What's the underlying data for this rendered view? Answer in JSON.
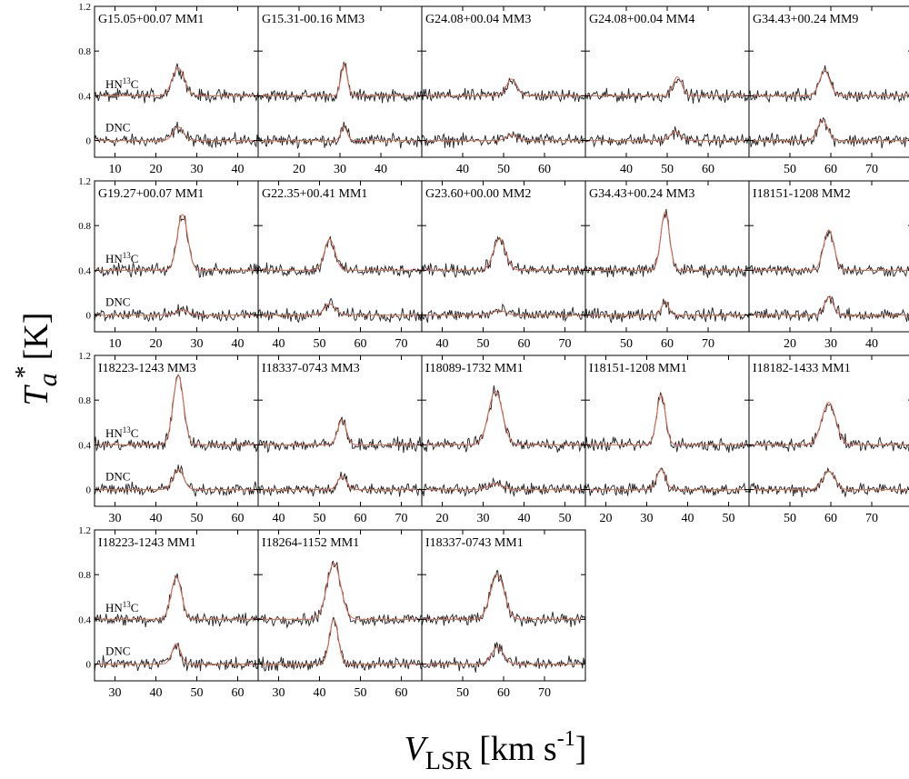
{
  "figure": {
    "ylabel": "T",
    "ylabel_sub": "a",
    "ylabel_sup": "*",
    "ylabel_unit": "[K]",
    "xlabel": "V",
    "xlabel_sub": "LSR",
    "xlabel_unit_pre": "[km s",
    "xlabel_unit_sup": "-1",
    "xlabel_unit_post": "]",
    "line_upper": "HN",
    "line_upper_sup": "13",
    "line_upper_post": "C",
    "line_lower": "DNC",
    "y_ticks": [
      "0",
      "0.4",
      "0.8",
      "1.2"
    ],
    "colors": {
      "spectrum": "#222222",
      "fit": "#e2684f",
      "axis": "#000000"
    }
  },
  "chart_data": {
    "type": "line",
    "ylim": [
      -0.15,
      1.2
    ],
    "grid": false,
    "baseline_offsets": {
      "HN13C": 0.4,
      "DNC": 0.0
    },
    "panels": [
      {
        "title": "G15.05+00.07 MM1",
        "xlim": [
          5,
          45
        ],
        "xticks": [
          10,
          20,
          30,
          40
        ],
        "hn13c": {
          "center": 25.5,
          "peak": 0.25,
          "fwhm": 3.5
        },
        "dnc": {
          "center": 25.5,
          "peak": 0.12,
          "fwhm": 3.0
        }
      },
      {
        "title": "G15.31-00.16 MM3",
        "xlim": [
          10,
          50
        ],
        "xticks": [
          20,
          30,
          40
        ],
        "hn13c": {
          "center": 31.0,
          "peak": 0.28,
          "fwhm": 1.8
        },
        "dnc": {
          "center": 31.0,
          "peak": 0.12,
          "fwhm": 1.8
        }
      },
      {
        "title": "G24.08+00.04 MM3",
        "xlim": [
          30,
          70
        ],
        "xticks": [
          40,
          50,
          60
        ],
        "hn13c": {
          "center": 52.0,
          "peak": 0.15,
          "fwhm": 3.0
        },
        "dnc": {
          "center": 52.0,
          "peak": 0.05,
          "fwhm": 3.0
        }
      },
      {
        "title": "G24.08+00.04 MM4",
        "xlim": [
          30,
          70
        ],
        "xticks": [
          40,
          50,
          60
        ],
        "hn13c": {
          "center": 52.5,
          "peak": 0.17,
          "fwhm": 2.5
        },
        "dnc": {
          "center": 52.0,
          "peak": 0.08,
          "fwhm": 3.0
        }
      },
      {
        "title": "G34.43+00.24 MM9",
        "xlim": [
          40,
          80
        ],
        "xticks": [
          50,
          60,
          70
        ],
        "hn13c": {
          "center": 58.5,
          "peak": 0.22,
          "fwhm": 3.0
        },
        "dnc": {
          "center": 58.0,
          "peak": 0.18,
          "fwhm": 3.0
        }
      },
      {
        "title": "G19.27+00.07 MM1",
        "xlim": [
          5,
          45
        ],
        "xticks": [
          10,
          20,
          30,
          40
        ],
        "hn13c": {
          "center": 26.5,
          "peak": 0.5,
          "fwhm": 3.0
        },
        "dnc": {
          "center": 26.5,
          "peak": 0.05,
          "fwhm": 3.0
        }
      },
      {
        "title": "G22.35+00.41 MM1",
        "xlim": [
          35,
          75
        ],
        "xticks": [
          40,
          50,
          60,
          70
        ],
        "hn13c": {
          "center": 52.5,
          "peak": 0.28,
          "fwhm": 3.0
        },
        "dnc": {
          "center": 52.5,
          "peak": 0.1,
          "fwhm": 3.0
        }
      },
      {
        "title": "G23.60+00.00 MM2",
        "xlim": [
          35,
          75
        ],
        "xticks": [
          40,
          50,
          60,
          70
        ],
        "hn13c": {
          "center": 54.0,
          "peak": 0.28,
          "fwhm": 3.5
        },
        "dnc": {
          "center": 54.0,
          "peak": 0.04,
          "fwhm": 3.5
        }
      },
      {
        "title": "G34.43+00.24 MM3",
        "xlim": [
          40,
          80
        ],
        "xticks": [
          50,
          60,
          70
        ],
        "hn13c": {
          "center": 59.5,
          "peak": 0.52,
          "fwhm": 2.5
        },
        "dnc": {
          "center": 59.5,
          "peak": 0.12,
          "fwhm": 2.0
        }
      },
      {
        "title": "I18151-1208 MM2",
        "xlim": [
          10,
          50
        ],
        "xticks": [
          20,
          30,
          40
        ],
        "hn13c": {
          "center": 29.5,
          "peak": 0.36,
          "fwhm": 3.0
        },
        "dnc": {
          "center": 29.5,
          "peak": 0.16,
          "fwhm": 2.5
        }
      },
      {
        "title": "I18223-1243 MM3",
        "xlim": [
          25,
          65
        ],
        "xticks": [
          30,
          40,
          50,
          60
        ],
        "hn13c": {
          "center": 45.5,
          "peak": 0.62,
          "fwhm": 3.0
        },
        "dnc": {
          "center": 45.5,
          "peak": 0.18,
          "fwhm": 3.0
        }
      },
      {
        "title": "I18337-0743 MM3",
        "xlim": [
          35,
          75
        ],
        "xticks": [
          40,
          50,
          60,
          70
        ],
        "hn13c": {
          "center": 55.5,
          "peak": 0.22,
          "fwhm": 2.5
        },
        "dnc": {
          "center": 55.5,
          "peak": 0.12,
          "fwhm": 2.5
        }
      },
      {
        "title": "I18089-1732 MM1",
        "xlim": [
          15,
          55
        ],
        "xticks": [
          20,
          30,
          40,
          50
        ],
        "hn13c": {
          "center": 33.0,
          "peak": 0.48,
          "fwhm": 4.0
        },
        "dnc": {
          "center": 33.0,
          "peak": 0.05,
          "fwhm": 4.0
        }
      },
      {
        "title": "I18151-1208 MM1",
        "xlim": [
          15,
          55
        ],
        "xticks": [
          20,
          30,
          40,
          50
        ],
        "hn13c": {
          "center": 33.5,
          "peak": 0.45,
          "fwhm": 2.5
        },
        "dnc": {
          "center": 33.5,
          "peak": 0.18,
          "fwhm": 2.5
        }
      },
      {
        "title": "I18182-1433 MM1",
        "xlim": [
          40,
          80
        ],
        "xticks": [
          50,
          60,
          70
        ],
        "hn13c": {
          "center": 59.5,
          "peak": 0.38,
          "fwhm": 4.0
        },
        "dnc": {
          "center": 59.5,
          "peak": 0.16,
          "fwhm": 3.5
        }
      },
      {
        "title": "I18223-1243 MM1",
        "xlim": [
          25,
          65
        ],
        "xticks": [
          30,
          40,
          50,
          60
        ],
        "hn13c": {
          "center": 45.0,
          "peak": 0.38,
          "fwhm": 3.0
        },
        "dnc": {
          "center": 45.0,
          "peak": 0.18,
          "fwhm": 2.5
        }
      },
      {
        "title": "I18264-1152 MM1",
        "xlim": [
          25,
          65
        ],
        "xticks": [
          30,
          40,
          50,
          60
        ],
        "hn13c": {
          "center": 43.5,
          "peak": 0.5,
          "fwhm": 4.0
        },
        "dnc": {
          "center": 43.5,
          "peak": 0.4,
          "fwhm": 2.5
        }
      },
      {
        "title": "I18337-0743 MM1",
        "xlim": [
          40,
          80
        ],
        "xticks": [
          50,
          60,
          70
        ],
        "hn13c": {
          "center": 58.5,
          "peak": 0.4,
          "fwhm": 4.0
        },
        "dnc": {
          "center": 58.5,
          "peak": 0.15,
          "fwhm": 3.5
        }
      }
    ]
  }
}
